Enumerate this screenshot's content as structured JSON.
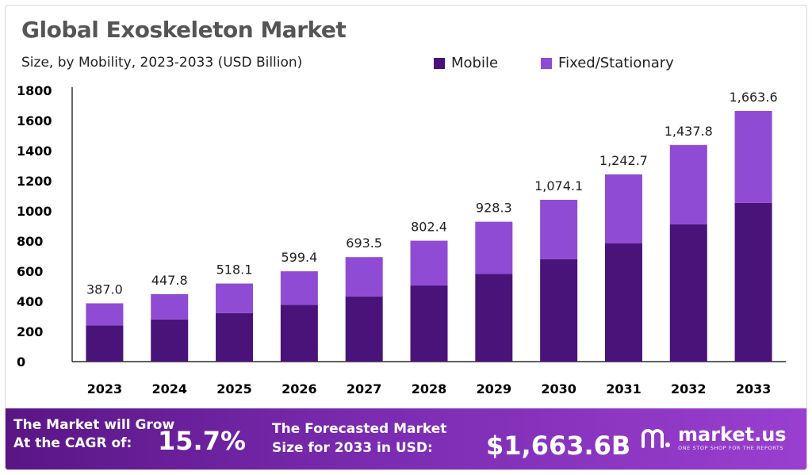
{
  "colors": {
    "mobile": "#4a137a",
    "fixed": "#8f4bd4",
    "axis": "#000000",
    "text": "#222222"
  },
  "legend": {
    "mobile_label": "Mobile",
    "fixed_label": "Fixed/Stationary"
  },
  "chart_data": {
    "type": "bar",
    "stacked": true,
    "title": "Global Exoskeleton Market",
    "subtitle": "Size, by Mobility, 2023-2033 (USD Billion)",
    "categories": [
      "2023",
      "2024",
      "2025",
      "2026",
      "2027",
      "2028",
      "2029",
      "2030",
      "2031",
      "2032",
      "2033"
    ],
    "series": [
      {
        "name": "Mobile",
        "values": [
          240,
          280,
          322,
          376,
          432,
          506,
          582,
          680,
          786,
          912,
          1054
        ]
      },
      {
        "name": "Fixed/Stationary",
        "values": [
          147.0,
          167.8,
          196.1,
          223.4,
          261.5,
          296.4,
          346.3,
          394.1,
          456.7,
          525.8,
          609.6
        ]
      }
    ],
    "totals": [
      387.0,
      447.8,
      518.1,
      599.4,
      693.5,
      802.4,
      928.3,
      1074.1,
      1242.7,
      1437.8,
      1663.6
    ],
    "total_labels": [
      "387.0",
      "447.8",
      "518.1",
      "599.4",
      "693.5",
      "802.4",
      "928.3",
      "1,074.1",
      "1,242.7",
      "1,437.8",
      "1,663.6"
    ],
    "y_ticks": [
      0,
      200,
      400,
      600,
      800,
      1000,
      1200,
      1400,
      1600,
      1800
    ],
    "ylim": [
      0,
      1800
    ],
    "grid": false,
    "legend_position": "top-right"
  },
  "banner": {
    "cagr_label": "The Market will Grow At the CAGR of:",
    "cagr_value": "15.7%",
    "forecast_label": "The Forecasted Market Size for 2033 in USD:",
    "forecast_value": "$1,663.6B",
    "brand_name": "market.us",
    "brand_tagline": "ONE STOP SHOP FOR THE REPORTS",
    "brand_icon": "market-us-logo-icon"
  }
}
